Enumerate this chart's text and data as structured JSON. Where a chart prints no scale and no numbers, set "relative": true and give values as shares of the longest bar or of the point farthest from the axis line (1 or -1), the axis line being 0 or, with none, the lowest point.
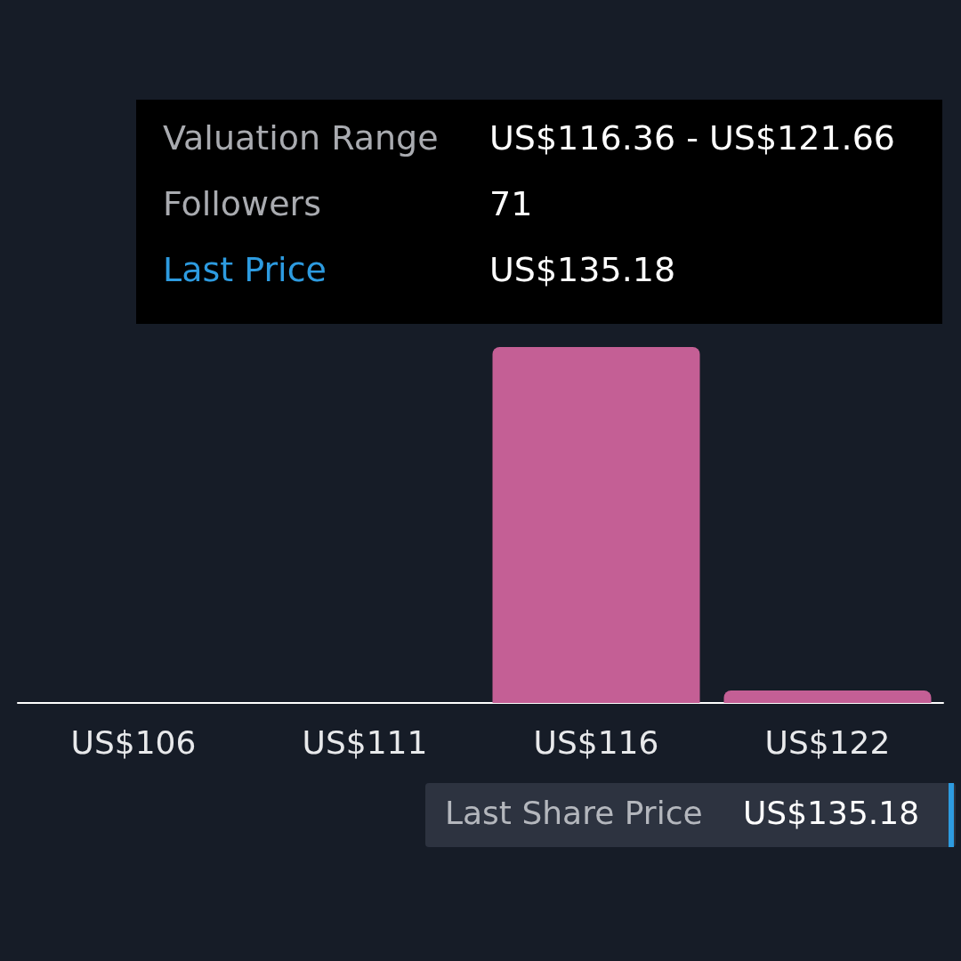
{
  "chart_data": {
    "type": "bar",
    "relative": true,
    "categories": [
      "US$106",
      "US$111",
      "US$116",
      "US$122"
    ],
    "values": [
      0,
      0,
      1,
      0.035
    ],
    "color": "#c45f95",
    "annotations": [
      "Valuation Range",
      "US$116.36 - US$121.66",
      "Followers",
      "71",
      "Last Price",
      "US$135.18",
      "Last Share Price",
      "US$135.18"
    ]
  }
}
